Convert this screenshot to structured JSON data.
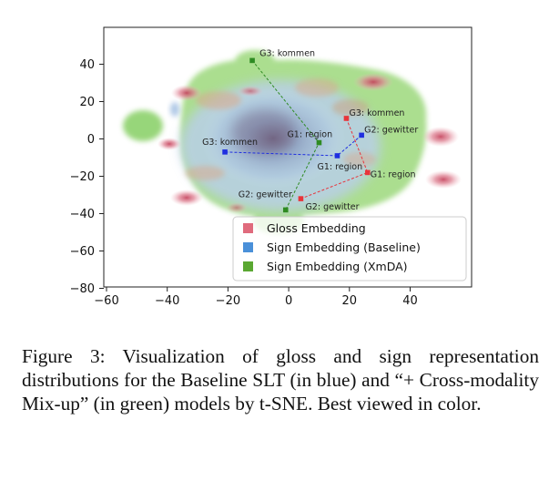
{
  "chart_data": {
    "type": "scatter",
    "title": "",
    "xlabel": "",
    "ylabel": "",
    "xlim": [
      -60,
      60
    ],
    "ylim": [
      -80,
      55
    ],
    "x_ticks": [
      -60,
      -40,
      -20,
      0,
      20,
      40
    ],
    "y_ticks": [
      40,
      20,
      0,
      -20,
      -40,
      -60,
      -80
    ],
    "x_tick_labels": [
      "−60",
      "−40",
      "−20",
      "0",
      "20",
      "40"
    ],
    "y_tick_labels": [
      "40",
      "20",
      "0",
      "−20",
      "−40",
      "−60",
      "−80"
    ],
    "grid": false,
    "legend_position": "lower-right",
    "legend": [
      {
        "label": "Gloss Embedding",
        "color": "#e06b7d"
      },
      {
        "label": "Sign Embedding (Baseline)",
        "color": "#4a90d9"
      },
      {
        "label": "Sign Embedding (XmDA)",
        "color": "#5aa832"
      }
    ],
    "series": [
      {
        "name": "Gloss Embedding",
        "color": "#e8343a",
        "points": [
          {
            "label": "G3: kommen",
            "x": 19,
            "y": 11
          },
          {
            "label": "G1: region",
            "x": 26,
            "y": -18
          },
          {
            "label": "G2: gewitter",
            "x": 4,
            "y": -32
          }
        ]
      },
      {
        "name": "Sign Embedding (Baseline)",
        "color": "#1f2fe0",
        "points": [
          {
            "label": "G2: gewitter",
            "x": 24,
            "y": 2
          },
          {
            "label": "G1: region",
            "x": 16,
            "y": -9
          },
          {
            "label": "G3: kommen",
            "x": -21,
            "y": -7
          }
        ]
      },
      {
        "name": "Sign Embedding (XmDA)",
        "color": "#2e8b22",
        "points": [
          {
            "label": "G3: kommen",
            "x": -12,
            "y": 42
          },
          {
            "label": "G1: region",
            "x": 10,
            "y": -2
          },
          {
            "label": "G2: gewitter",
            "x": -1,
            "y": -38
          }
        ]
      }
    ]
  },
  "caption": "Figure 3: Visualization of gloss and sign representation distributions for the Baseline SLT (in blue) and “+ Cross-modality Mix-up” (in green) models by t-SNE. Best viewed in color."
}
